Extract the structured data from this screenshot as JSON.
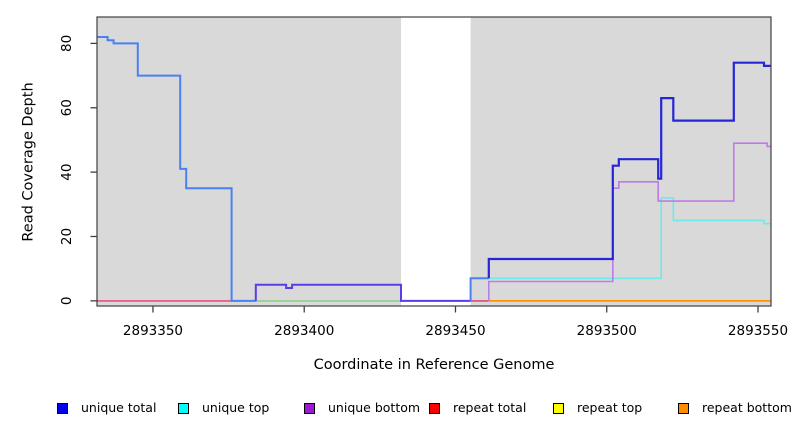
{
  "figure": {
    "xlabel": "Coordinate in Reference Genome",
    "ylabel": "Read Coverage Depth"
  },
  "chart_data": {
    "type": "line",
    "title": "",
    "xlabel": "Coordinate in Reference Genome",
    "ylabel": "Read Coverage Depth",
    "xlim": [
      2893331.5,
      2893554.3
    ],
    "ylim": [
      -1.6,
      88.2
    ],
    "xticks": [
      2893350,
      2893400,
      2893450,
      2893500,
      2893550
    ],
    "yticks": [
      0,
      20,
      40,
      60,
      80
    ],
    "grid": false,
    "plot_bg": "#d9d9d9",
    "border_color": "#404040",
    "gap_region": {
      "x0": 2893432,
      "x1": 2893455,
      "color": "#ffffff"
    },
    "legend_position": "bottom",
    "legend": [
      {
        "label": "unique total",
        "color": "#0000ee"
      },
      {
        "label": "unique top",
        "color": "#00ffff"
      },
      {
        "label": "unique bottom",
        "color": "#9c1ad6"
      },
      {
        "label": "repeat total",
        "color": "#ff0000"
      },
      {
        "label": "repeat top",
        "color": "#ffff00"
      },
      {
        "label": "repeat bottom",
        "color": "#ff8c00"
      }
    ],
    "series": [
      {
        "name": "repeat-overlap-left",
        "color": "#e8537e",
        "width": 1.6,
        "points": [
          [
            2893331.5,
            0
          ],
          [
            2893376,
            0
          ]
        ]
      },
      {
        "name": "repeat-overlap-mid",
        "color": "#8ecf8e",
        "width": 1.6,
        "points": [
          [
            2893384,
            0
          ],
          [
            2893432,
            0
          ]
        ]
      },
      {
        "name": "repeat-overlap-gap-exit",
        "color": "#d84f78",
        "width": 1.6,
        "points": [
          [
            2893455,
            0
          ],
          [
            2893461,
            0
          ]
        ]
      },
      {
        "name": "repeat-bottom",
        "color": "#ff9400",
        "width": 1.8,
        "points": [
          [
            2893461,
            0
          ],
          [
            2893554.3,
            0
          ]
        ]
      },
      {
        "name": "unique-total-left",
        "color": "#4a80f2",
        "width": 2,
        "points": [
          [
            2893331.5,
            82
          ],
          [
            2893335,
            82
          ],
          [
            2893335,
            81
          ],
          [
            2893337,
            81
          ],
          [
            2893337,
            80
          ],
          [
            2893345,
            80
          ],
          [
            2893345,
            70
          ],
          [
            2893359,
            70
          ],
          [
            2893359,
            41
          ],
          [
            2893361,
            41
          ],
          [
            2893361,
            35
          ],
          [
            2893376,
            35
          ],
          [
            2893376,
            0
          ],
          [
            2893384,
            0
          ]
        ]
      },
      {
        "name": "unique-total-bottom-overlap",
        "color": "#5c3ce8",
        "width": 2,
        "points": [
          [
            2893384,
            0
          ],
          [
            2893384,
            5
          ],
          [
            2893394,
            5
          ],
          [
            2893394,
            4
          ],
          [
            2893396,
            4
          ],
          [
            2893396,
            5
          ],
          [
            2893432,
            5
          ],
          [
            2893432,
            0
          ],
          [
            2893455,
            0
          ]
        ]
      },
      {
        "name": "unique-total-gap-exit",
        "color": "#4a80f2",
        "width": 2,
        "points": [
          [
            2893455,
            0
          ],
          [
            2893455,
            7
          ],
          [
            2893461,
            7
          ]
        ]
      },
      {
        "name": "unique-top",
        "color": "#6fe9ec",
        "width": 1.6,
        "points": [
          [
            2893461,
            7
          ],
          [
            2893518,
            7
          ],
          [
            2893518,
            32
          ],
          [
            2893522,
            32
          ],
          [
            2893522,
            25
          ],
          [
            2893552,
            25
          ],
          [
            2893552,
            24
          ],
          [
            2893554.3,
            24
          ]
        ]
      },
      {
        "name": "unique-bottom",
        "color": "#bd7ce4",
        "width": 1.6,
        "points": [
          [
            2893461,
            0
          ],
          [
            2893461,
            6
          ],
          [
            2893502,
            6
          ],
          [
            2893502,
            35
          ],
          [
            2893504,
            35
          ],
          [
            2893504,
            37
          ],
          [
            2893517,
            37
          ],
          [
            2893517,
            31
          ],
          [
            2893542,
            31
          ],
          [
            2893542,
            49
          ],
          [
            2893553,
            49
          ],
          [
            2893553,
            48
          ],
          [
            2893554.3,
            48
          ]
        ]
      },
      {
        "name": "unique-total",
        "color": "#2626d8",
        "width": 2.2,
        "points": [
          [
            2893461,
            7
          ],
          [
            2893461,
            13
          ],
          [
            2893502,
            13
          ],
          [
            2893502,
            42
          ],
          [
            2893504,
            42
          ],
          [
            2893504,
            44
          ],
          [
            2893517,
            44
          ],
          [
            2893517,
            38
          ],
          [
            2893518,
            38
          ],
          [
            2893518,
            63
          ],
          [
            2893522,
            63
          ],
          [
            2893522,
            56
          ],
          [
            2893542,
            56
          ],
          [
            2893542,
            74
          ],
          [
            2893552,
            74
          ],
          [
            2893552,
            73
          ],
          [
            2893554.3,
            73
          ]
        ]
      }
    ]
  }
}
